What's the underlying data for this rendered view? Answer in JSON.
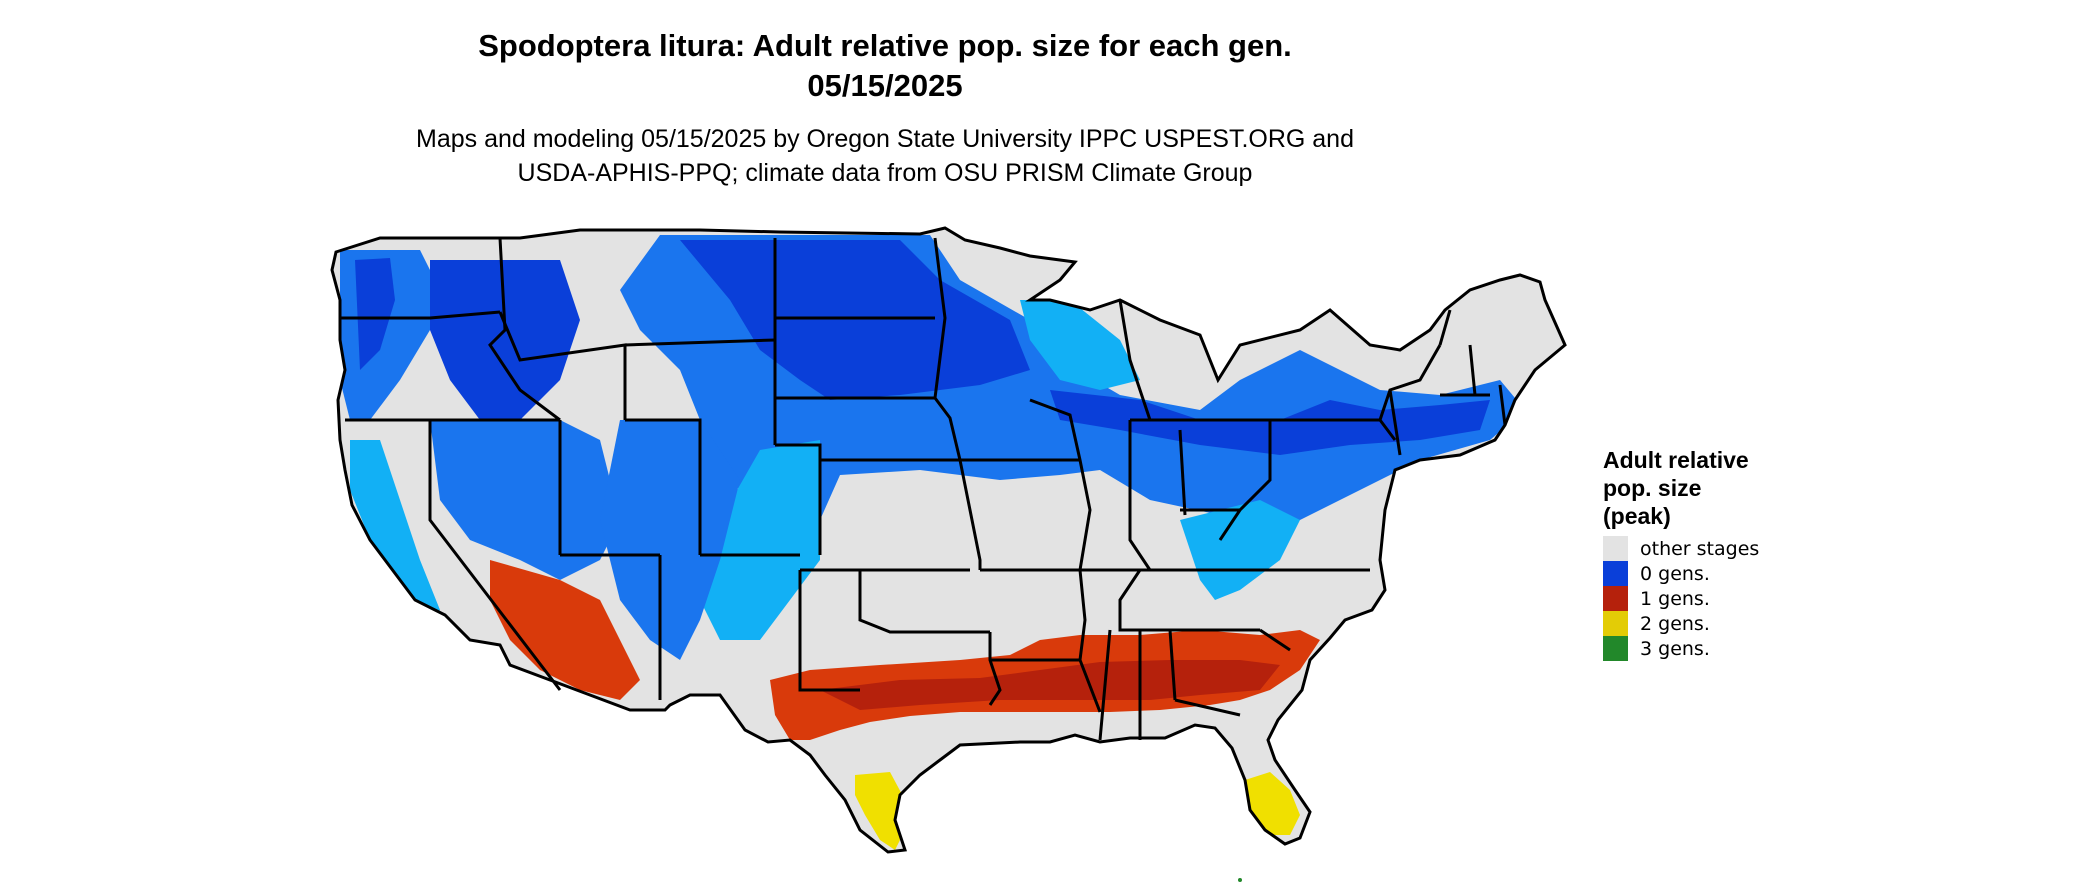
{
  "title": {
    "line1": "Spodoptera litura: Adult relative pop. size for each gen.",
    "line2": "05/15/2025"
  },
  "subtitle": {
    "line1": "Maps and modeling 05/15/2025 by Oregon State University IPPC USPEST.ORG and",
    "line2": "USDA-APHIS-PPQ; climate data from OSU PRISM Climate Group"
  },
  "legend": {
    "title_line1": "Adult relative",
    "title_line2": "pop. size",
    "title_line3": "(peak)",
    "items": [
      {
        "label": "other stages",
        "color": "#e3e3e3"
      },
      {
        "label": "0 gens.",
        "color": "#0a3fd9"
      },
      {
        "label": "1 gens.",
        "color": "#b5210c"
      },
      {
        "label": "2 gens.",
        "color": "#e3cc06"
      },
      {
        "label": "3 gens.",
        "color": "#22882a"
      }
    ]
  },
  "map_colors": {
    "land": "#e3e3e3",
    "blue_dark": "#0a3fd9",
    "blue_mid": "#1a75ee",
    "blue_light": "#12b0f5",
    "red_dark": "#b5210c",
    "red_orange": "#d93a0b",
    "yellow": "#f0e000",
    "border": "#000000"
  }
}
